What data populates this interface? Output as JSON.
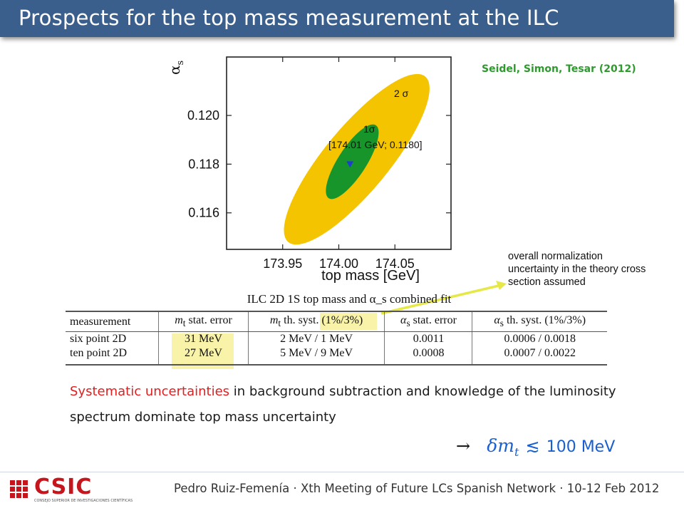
{
  "title": "Prospects for the top mass measurement at the ILC",
  "citation": "Seidel, Simon, Tesar (2012)",
  "chart_data": {
    "type": "contour",
    "xlabel": "top mass [GeV]",
    "ylabel": "α_s",
    "xlim": [
      173.9,
      174.1
    ],
    "ylim": [
      0.1145,
      0.1224
    ],
    "xticks": [
      173.95,
      174.0,
      174.05
    ],
    "xtick_labels": [
      "173.95",
      "174.00",
      "174.05"
    ],
    "yticks": [
      0.116,
      0.118,
      0.12
    ],
    "ytick_labels": [
      "0.116",
      "0.118",
      "0.120"
    ],
    "best_fit": {
      "x": 174.01,
      "y": 0.118,
      "label": "[174.01 GeV; 0.1180]",
      "color": "#1d3fd0"
    },
    "contours": [
      {
        "name": "2σ",
        "label": "2 σ",
        "color": "#f5c400",
        "center": [
          174.016,
          0.1182
        ],
        "points": [
          [
            173.966,
            0.1161
          ],
          [
            174.07,
            0.1206
          ],
          [
            173.988,
            0.1146
          ],
          [
            174.077,
            0.1216
          ],
          [
            173.957,
            0.1168
          ],
          [
            174.059,
            0.1214
          ]
        ]
      },
      {
        "name": "1σ",
        "label": "1σ",
        "color": "#18952a",
        "center": [
          174.012,
          0.1181
        ],
        "points": [
          [
            173.988,
            0.1169
          ],
          [
            174.041,
            0.1191
          ],
          [
            174.001,
            0.1169
          ],
          [
            174.033,
            0.1196
          ]
        ]
      }
    ],
    "grid": false,
    "caption": "ILC 2D 1S top mass and α_s combined fit"
  },
  "note": "overall normalization uncertainty in the theory cross section assumed",
  "table": {
    "headers": {
      "measurement": "measurement",
      "mt_stat_var": "m",
      "mt_stat_sub": "t",
      "mt_stat_rest": " stat. error",
      "mt_syst_var": "m",
      "mt_syst_sub": "t",
      "mt_syst_rest": " th. syst. (1%/3%)",
      "as_stat_var": "α",
      "as_stat_sub": "s",
      "as_stat_rest": " stat. error",
      "as_syst_var": "α",
      "as_syst_sub": "s",
      "as_syst_rest": " th. syst. (1%/3%)"
    },
    "rows": [
      {
        "measurement": "six point 2D",
        "mt_stat": "31 MeV",
        "mt_syst": "2 MeV / 1 MeV",
        "as_stat": "0.0011",
        "as_syst": "0.0006 / 0.0018"
      },
      {
        "measurement": "ten point 2D",
        "mt_stat": "27 MeV",
        "mt_syst": "5 MeV / 9 MeV",
        "as_stat": "0.0008",
        "as_syst": "0.0007 / 0.0022"
      }
    ]
  },
  "conclusion": {
    "highlight": "Systematic uncertainties",
    "text": " in background subtraction and knowledge of the luminosity spectrum dominate top mass uncertainty"
  },
  "formula": {
    "arrow": "→",
    "quantity": "δm",
    "quantity_sub": "t",
    "relation": "≲",
    "value": "100 MeV"
  },
  "footer": {
    "logo": "CSIC",
    "logo_sub": "CONSEJO SUPERIOR DE INVESTIGACIONES CIENTÍFICAS",
    "text": "Pedro Ruiz-Femenía · Xth Meeting of Future LCs Spanish Network · 10-12 Feb 2012"
  },
  "colors": {
    "title_bar": "#3b5f8c",
    "citation": "#2e9a2e",
    "highlight_red": "#e02020",
    "formula_blue": "#1a5fd0",
    "table_highlight": "#f6ef8c",
    "arrow": "#e6e84a"
  }
}
